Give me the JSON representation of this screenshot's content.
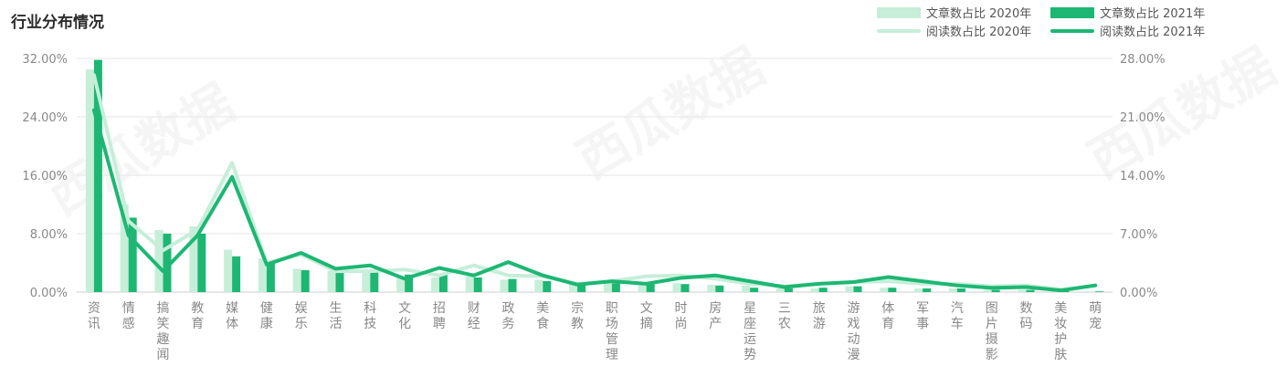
{
  "title": "行业分布情况",
  "watermark": "西瓜数据",
  "colors": {
    "article_2020": "#c6eed9",
    "article_2021": "#1db773",
    "read_2020": "#c6eed9",
    "read_2021": "#1db773",
    "axis_text": "#888888",
    "grid": "#e6e6e6"
  },
  "chart_data": {
    "type": "bar",
    "title": "行业分布情况",
    "categories": [
      "资讯",
      "情感",
      "搞笑趣闻",
      "教育",
      "媒体",
      "健康",
      "娱乐",
      "生活",
      "科技",
      "文化",
      "招聘",
      "财经",
      "政务",
      "美食",
      "宗教",
      "职场管理",
      "文摘",
      "时尚",
      "房产",
      "星座运势",
      "三农",
      "旅游",
      "游戏动漫",
      "体育",
      "军事",
      "汽车",
      "图片摄影",
      "数码",
      "美妆护肤",
      "萌宠"
    ],
    "left_axis": {
      "min": 0,
      "max": 32,
      "ticks": [
        "0.00%",
        "8.00%",
        "16.00%",
        "24.00%",
        "32.00%"
      ]
    },
    "right_axis": {
      "min": 0,
      "max": 28,
      "ticks": [
        "0.00%",
        "7.00%",
        "14.00%",
        "21.00%",
        "28.00%"
      ]
    },
    "legend_position": "top-right",
    "grid": true,
    "series": [
      {
        "name": "文章数占比 2020年",
        "kind": "bar",
        "axis": "left",
        "values": [
          30.5,
          12.0,
          8.5,
          9.0,
          5.8,
          4.6,
          3.2,
          2.9,
          2.6,
          2.2,
          2.0,
          2.2,
          1.7,
          1.7,
          1.3,
          1.3,
          1.2,
          1.2,
          1.0,
          0.9,
          0.5,
          0.5,
          0.8,
          0.6,
          0.5,
          0.5,
          0.3,
          0.3,
          0.2,
          0.1
        ]
      },
      {
        "name": "文章数占比 2021年",
        "kind": "bar",
        "axis": "left",
        "values": [
          31.8,
          10.2,
          8.0,
          8.0,
          4.9,
          4.0,
          3.0,
          2.8,
          2.7,
          2.4,
          2.5,
          2.0,
          1.8,
          1.5,
          1.2,
          1.2,
          1.2,
          1.1,
          0.9,
          0.6,
          0.5,
          0.6,
          0.8,
          0.6,
          0.5,
          0.5,
          0.3,
          0.3,
          0.2,
          0.1
        ]
      },
      {
        "name": "阅读数占比 2020年",
        "kind": "line",
        "axis": "right",
        "values": [
          26.0,
          8.5,
          5.0,
          7.5,
          15.5,
          3.5,
          4.5,
          2.5,
          2.5,
          2.7,
          2.0,
          3.2,
          2.0,
          1.9,
          1.0,
          1.3,
          1.9,
          2.0,
          1.6,
          1.0,
          0.7,
          1.0,
          1.2,
          1.3,
          1.0,
          1.0,
          0.7,
          0.8,
          0.3,
          0.8
        ]
      },
      {
        "name": "阅读数占比 2021年",
        "kind": "line",
        "axis": "right",
        "values": [
          21.8,
          6.8,
          2.5,
          6.8,
          13.8,
          3.3,
          4.7,
          2.8,
          3.2,
          1.6,
          2.9,
          2.0,
          3.6,
          2.0,
          0.9,
          1.3,
          1.0,
          1.7,
          2.0,
          1.3,
          0.6,
          1.0,
          1.2,
          1.8,
          1.3,
          0.8,
          0.5,
          0.6,
          0.2,
          0.8
        ]
      }
    ]
  }
}
